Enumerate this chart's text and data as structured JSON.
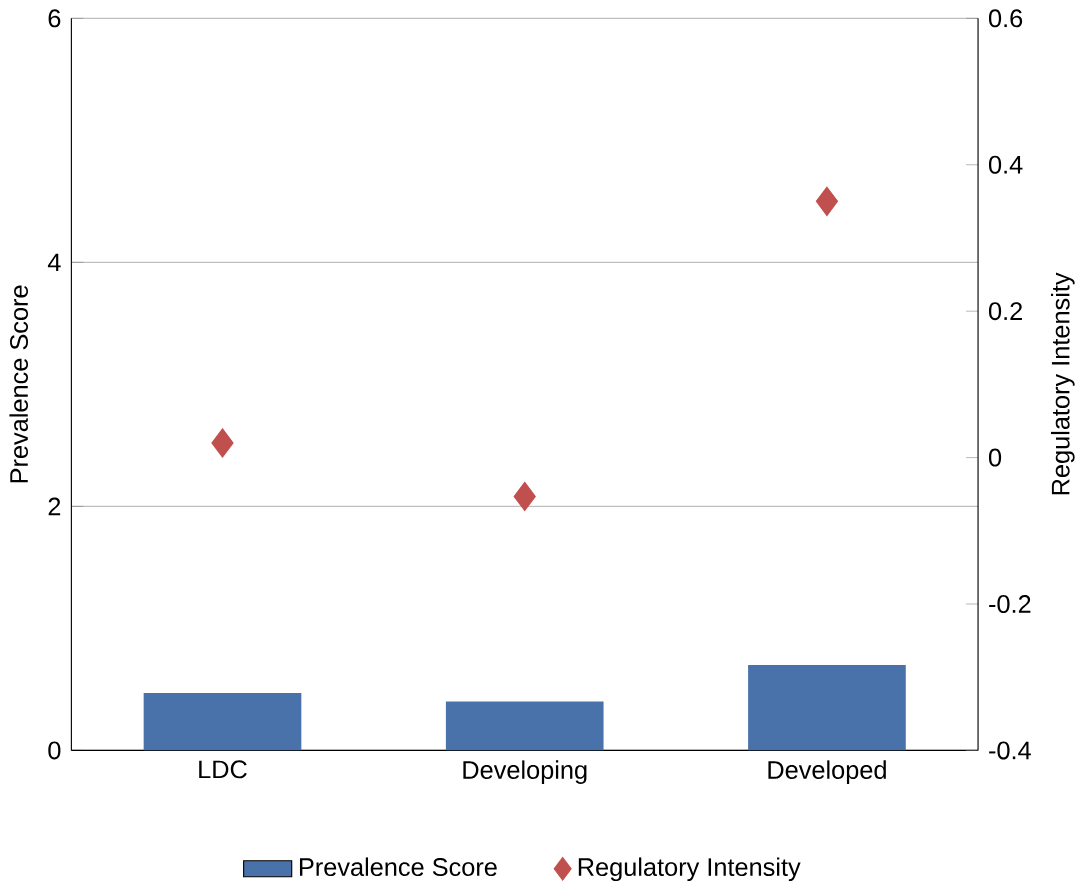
{
  "chart_data": {
    "type": "bar",
    "categories": [
      "LDC",
      "Developing",
      "Developed"
    ],
    "series": [
      {
        "name": "Prevalence Score",
        "color": "#4a72aa",
        "values": [
          0.47,
          0.4,
          0.7
        ]
      },
      {
        "name": "Regulatory Intensity",
        "type": "scatter",
        "axis": "y2",
        "color": "#c0504d",
        "values": [
          0.02,
          -0.053,
          0.35
        ]
      }
    ],
    "ylabel": "Prevalence Score",
    "y2label": "Regulatory Intensity",
    "ylim": [
      0,
      6
    ],
    "yticks": [
      0,
      2,
      4,
      6
    ],
    "y2lim": [
      -0.4,
      0.6
    ],
    "y2ticks": [
      {
        "value": -0.4,
        "label": "-0.4"
      },
      {
        "value": -0.2,
        "label": "-0.2"
      },
      0,
      {
        "value": 0.2,
        "label": "0.2"
      },
      {
        "value": 0.4,
        "label": "0.4"
      },
      {
        "value": 0.6,
        "label": "0.6"
      }
    ],
    "grid": "y",
    "legend": "bottom",
    "marker": "diamond"
  }
}
